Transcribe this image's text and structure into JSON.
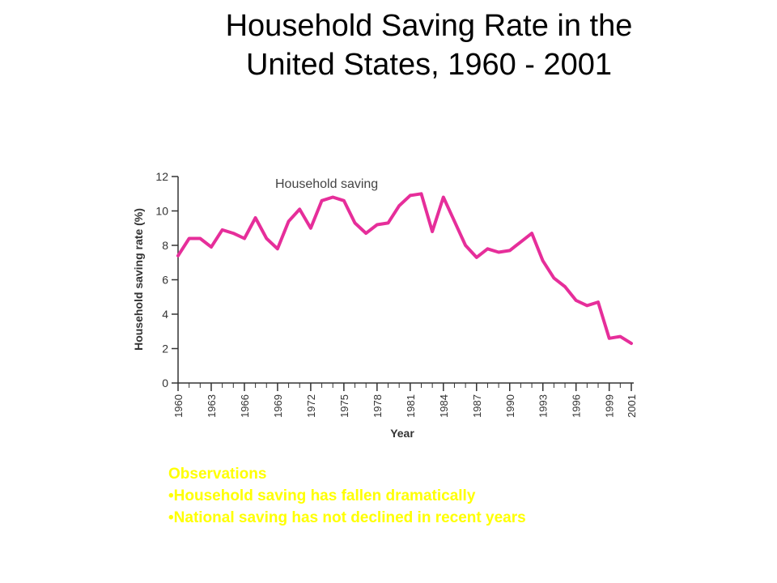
{
  "slide": {
    "title_line1": "Household Saving Rate in the",
    "title_line2": "United States, 1960 - 2001"
  },
  "observations": {
    "heading": "Observations",
    "items": [
      "Household saving has fallen dramatically",
      "National saving has not declined in recent years"
    ]
  },
  "colors": {
    "series": "#e62e9a",
    "axis": "#333333",
    "observations_text": "#ffff00"
  },
  "chart_data": {
    "type": "line",
    "title": "",
    "xlabel": "Year",
    "ylabel": "Household saving rate (%)",
    "xlim": [
      1960,
      2001
    ],
    "ylim": [
      0,
      12
    ],
    "yticks": [
      0,
      2,
      4,
      6,
      8,
      10,
      12
    ],
    "xticks": [
      1960,
      1963,
      1966,
      1969,
      1972,
      1975,
      1978,
      1981,
      1984,
      1987,
      1990,
      1993,
      1996,
      1999,
      2001
    ],
    "grid": false,
    "annotation": "Household saving",
    "series": [
      {
        "x": [
          1960,
          1961,
          1962,
          1963,
          1964,
          1965,
          1966,
          1967,
          1968,
          1969,
          1970,
          1971,
          1972,
          1973,
          1974,
          1975,
          1976,
          1977,
          1978,
          1979,
          1980,
          1981,
          1982,
          1983,
          1984,
          1985,
          1986,
          1987,
          1988,
          1989,
          1990,
          1991,
          1992,
          1993,
          1994,
          1995,
          1996,
          1997,
          1998,
          1999,
          2000,
          2001
        ],
        "y": [
          7.4,
          8.4,
          8.4,
          7.9,
          8.9,
          8.7,
          8.4,
          9.6,
          8.4,
          7.8,
          9.4,
          10.1,
          9.0,
          10.6,
          10.8,
          10.6,
          9.3,
          8.7,
          9.2,
          9.3,
          10.3,
          10.9,
          11.0,
          8.8,
          10.8,
          9.4,
          8.0,
          7.3,
          7.8,
          7.6,
          7.7,
          8.2,
          8.7,
          7.1,
          6.1,
          5.6,
          4.8,
          4.5,
          4.7,
          2.6,
          2.7,
          2.3
        ]
      }
    ]
  }
}
